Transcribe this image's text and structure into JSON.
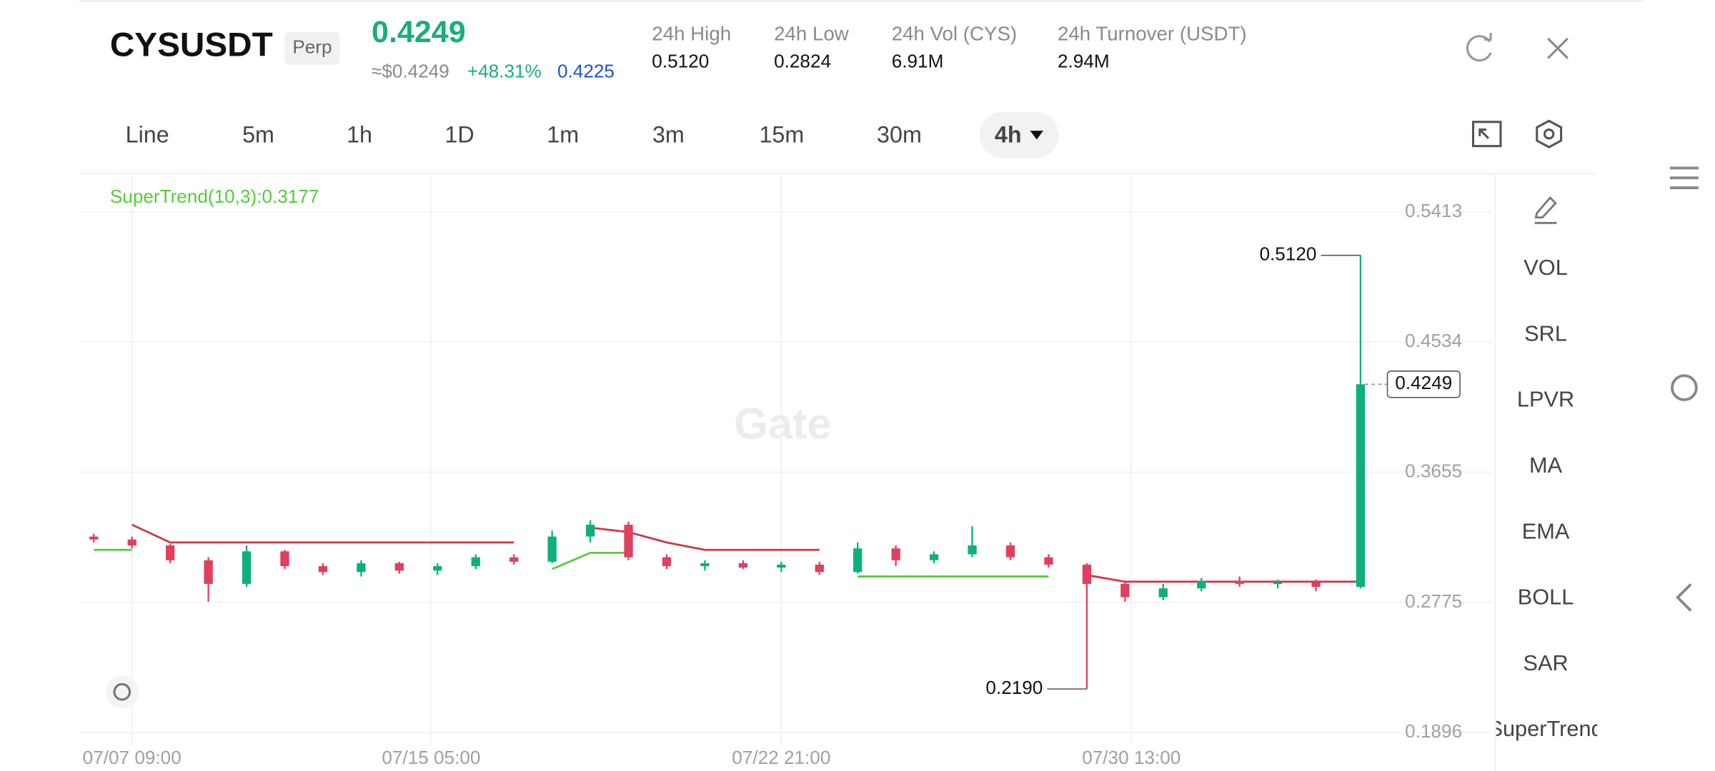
{
  "header": {
    "symbol": "CYSUSDT",
    "badge": "Perp",
    "price": "0.4249",
    "price_usd": "≈$0.4249",
    "change": "+48.31%",
    "mark_price": "0.4225",
    "stats": [
      {
        "label": "24h High",
        "value": "0.5120"
      },
      {
        "label": "24h Low",
        "value": "0.2824"
      },
      {
        "label": "24h Vol (CYS)",
        "value": "6.91M"
      },
      {
        "label": "24h Turnover (USDT)",
        "value": "2.94M"
      }
    ]
  },
  "toolbar": {
    "intervals": [
      "Line",
      "5m",
      "1h",
      "1D",
      "1m",
      "3m",
      "15m",
      "30m",
      "4h"
    ]
  },
  "indicators": [
    "VOL",
    "SRL",
    "LPVR",
    "MA",
    "EMA",
    "BOLL",
    "SAR",
    "SuperTrend"
  ],
  "chart_data": {
    "type": "candlestick",
    "indicator_label": "SuperTrend(10,3):0.3177",
    "watermark": "Gate",
    "up_color": "#0db07c",
    "down_color": "#e0405e",
    "x": [
      -6,
      0,
      6,
      12,
      18,
      24,
      30,
      36,
      42,
      48,
      54,
      60,
      66,
      72,
      78,
      84,
      90,
      96,
      102,
      108,
      114,
      120,
      126,
      132,
      138,
      144,
      150,
      156,
      162,
      168,
      174,
      180,
      186,
      193
    ],
    "open": [
      0.322,
      0.32,
      0.316,
      0.306,
      0.29,
      0.312,
      0.302,
      0.298,
      0.304,
      0.299,
      0.302,
      0.308,
      0.305,
      0.322,
      0.33,
      0.308,
      0.302,
      0.304,
      0.301,
      0.303,
      0.298,
      0.314,
      0.306,
      0.31,
      0.316,
      0.308,
      0.303,
      0.29,
      0.281,
      0.287,
      0.292,
      0.29,
      0.291,
      0.288
    ],
    "high": [
      0.324,
      0.322,
      0.317,
      0.308,
      0.316,
      0.313,
      0.304,
      0.306,
      0.305,
      0.304,
      0.31,
      0.31,
      0.326,
      0.333,
      0.332,
      0.31,
      0.306,
      0.306,
      0.305,
      0.305,
      0.318,
      0.316,
      0.312,
      0.329,
      0.318,
      0.31,
      0.304,
      0.292,
      0.29,
      0.294,
      0.295,
      0.293,
      0.293,
      0.512
    ],
    "low": [
      0.318,
      0.314,
      0.304,
      0.278,
      0.288,
      0.3,
      0.296,
      0.295,
      0.297,
      0.296,
      0.3,
      0.303,
      0.304,
      0.318,
      0.306,
      0.3,
      0.299,
      0.3,
      0.298,
      0.296,
      0.297,
      0.302,
      0.304,
      0.308,
      0.306,
      0.301,
      0.219,
      0.278,
      0.279,
      0.285,
      0.288,
      0.287,
      0.285,
      0.287
    ],
    "close": [
      0.32,
      0.316,
      0.306,
      0.29,
      0.312,
      0.302,
      0.298,
      0.304,
      0.299,
      0.302,
      0.308,
      0.305,
      0.322,
      0.33,
      0.308,
      0.302,
      0.304,
      0.301,
      0.303,
      0.298,
      0.314,
      0.306,
      0.31,
      0.316,
      0.308,
      0.303,
      0.29,
      0.281,
      0.287,
      0.292,
      0.29,
      0.291,
      0.288,
      0.4249
    ],
    "lines": [
      {
        "color": "#d0364a",
        "values": [
          null,
          0.33,
          0.318,
          0.318,
          0.318,
          0.318,
          0.318,
          0.318,
          0.318,
          0.318,
          0.318,
          0.318,
          null,
          0.328,
          0.325,
          0.318,
          0.313,
          0.313,
          0.313,
          0.313,
          null,
          null,
          null,
          null,
          null,
          null,
          0.296,
          0.2915,
          0.2915,
          0.2915,
          0.2915,
          0.2915,
          0.2915,
          0.2915
        ]
      },
      {
        "color": "#55cc3c",
        "values": [
          0.313,
          0.313,
          null,
          null,
          null,
          null,
          null,
          null,
          null,
          null,
          null,
          null,
          0.3,
          0.311,
          0.311,
          null,
          null,
          null,
          null,
          null,
          0.295,
          0.295,
          0.295,
          0.295,
          0.295,
          0.295,
          null,
          null,
          null,
          null,
          null,
          null,
          null,
          null
        ]
      }
    ],
    "ylim": [
      0.1814,
      0.5658
    ],
    "yticks": [
      0.5413,
      0.4534,
      0.3655,
      0.2775,
      0.1896
    ],
    "xlim": [
      -8.3,
      213.8
    ],
    "xticks": [
      {
        "value": 0,
        "label": "07/07 09:00"
      },
      {
        "value": 47,
        "label": "07/15 05:00"
      },
      {
        "value": 102,
        "label": "07/22 21:00"
      },
      {
        "value": 157,
        "label": "07/30 13:00"
      }
    ],
    "annotations": [
      {
        "value": 0.512,
        "label": "0.5120"
      },
      {
        "value": 0.219,
        "label": "0.2190"
      },
      {
        "value": 0.4249,
        "label": "0.4249"
      }
    ]
  }
}
